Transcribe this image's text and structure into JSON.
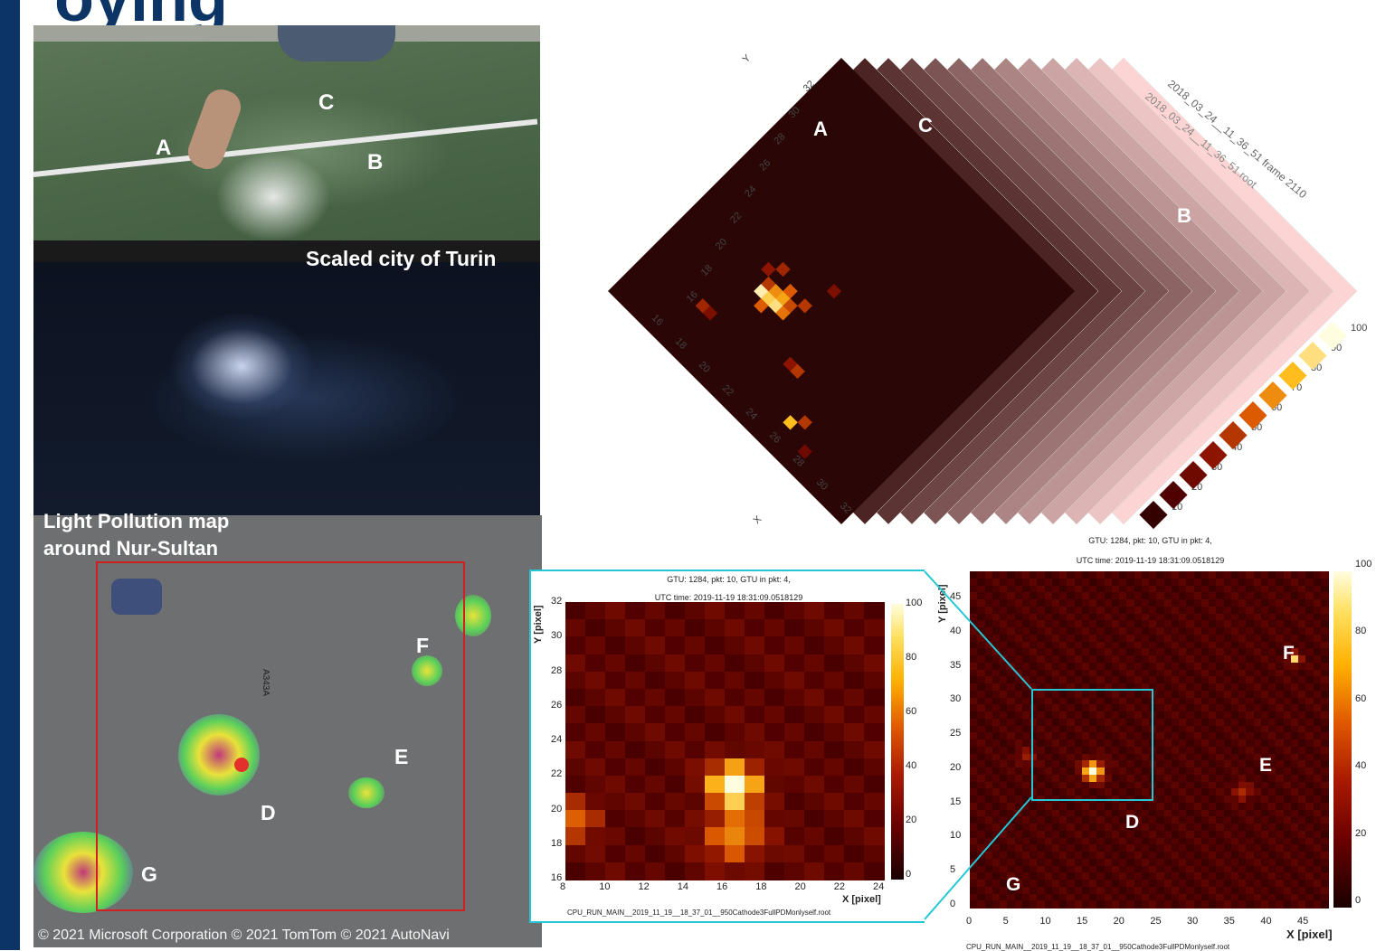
{
  "figure": {
    "title_fragment": "oying"
  },
  "turin_model": {
    "caption": "Scaled city of Turin",
    "labels": [
      "A",
      "B",
      "C"
    ]
  },
  "diamond_map": {
    "title_lines": [
      "2018_03_24__11_36_51 frame 2110",
      "2018_03_24__11_36_51.root"
    ],
    "y_axis_label": "Y",
    "x_axis_label": "X",
    "top_ticks": [
      "32",
      "30",
      "28",
      "26",
      "24",
      "22",
      "20",
      "18",
      "16"
    ],
    "bottom_ticks": [
      "16",
      "18",
      "20",
      "22",
      "24",
      "26",
      "28",
      "30",
      "32"
    ],
    "colorbar_ticks": [
      "10",
      "20",
      "30",
      "40",
      "50",
      "60",
      "70",
      "80",
      "90",
      "100"
    ],
    "labels": [
      "A",
      "B",
      "C"
    ]
  },
  "light_pollution": {
    "title_line1": "Light Pollution map",
    "title_line2": "around Nur-Sultan",
    "copyright": "© 2021 Microsoft Corporation © 2021 TomTom © 2021 AutoNavi",
    "labels": [
      "D",
      "E",
      "F",
      "G"
    ],
    "road_label": "A343A"
  },
  "zoom_panel": {
    "header_line1": "GTU: 1284, pkt: 10, GTU in pkt: 4,",
    "header_line2": "UTC time: 2019-11-19 18:31:09.0518129",
    "y_axis_label": "Y [pixel]",
    "x_axis_label": "X [pixel]",
    "x_ticks": [
      "8",
      "10",
      "12",
      "14",
      "16",
      "18",
      "20",
      "22",
      "24"
    ],
    "y_ticks": [
      "32",
      "30",
      "28",
      "26",
      "24",
      "22",
      "20",
      "18",
      "16"
    ],
    "colorbar_ticks": [
      "100",
      "80",
      "60",
      "40",
      "20",
      "0"
    ],
    "footer": "CPU_RUN_MAIN__2019_11_19__18_37_01__950Cathode3FullPDMonlyself.root"
  },
  "full_panel": {
    "header_line1": "GTU: 1284, pkt: 10, GTU in pkt: 4,",
    "header_line2": "UTC time: 2019-11-19 18:31:09.0518129",
    "y_axis_label": "Y [pixel]",
    "x_axis_label": "X [pixel]",
    "x_ticks": [
      "0",
      "5",
      "10",
      "15",
      "20",
      "25",
      "30",
      "35",
      "40",
      "45"
    ],
    "y_ticks": [
      "45",
      "40",
      "35",
      "30",
      "25",
      "20",
      "15",
      "10",
      "5",
      "0"
    ],
    "colorbar_ticks": [
      "100",
      "80",
      "60",
      "40",
      "20",
      "0"
    ],
    "footer": "CPU_RUN_MAIN__2019_11_19__18_37_01__950Cathode3FullPDMonlyself.root",
    "labels": [
      "D",
      "E",
      "F",
      "G"
    ]
  }
}
